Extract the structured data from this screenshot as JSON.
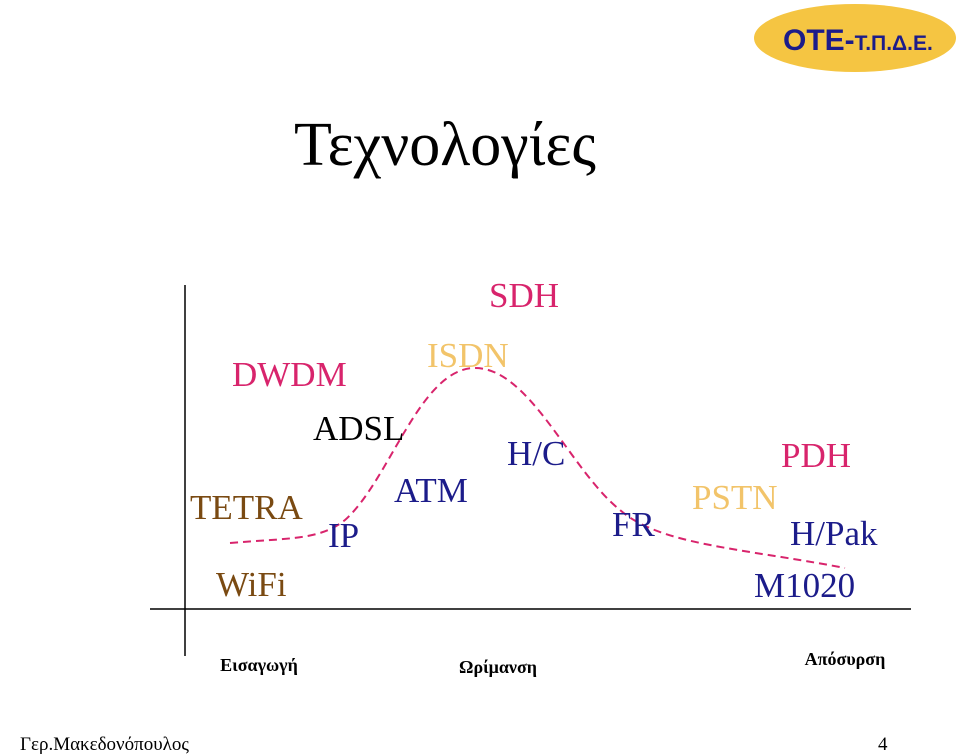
{
  "badge": {
    "main": "OTE-",
    "sub": "Τ.Π.Δ.Ε."
  },
  "title": "Τεχνολογίες",
  "nodes": [
    {
      "label": "SDH",
      "color": "#d8246c"
    },
    {
      "label": "DWDM",
      "color": "#d8246c"
    },
    {
      "label": "ISDN",
      "color": "#f2c46a"
    },
    {
      "label": "ADSL",
      "color": "#000000"
    },
    {
      "label": "H/C",
      "color": "#1c1c8a"
    },
    {
      "label": "PDH",
      "color": "#d8246c"
    },
    {
      "label": "ATM",
      "color": "#1c1c8a"
    },
    {
      "label": "PSTN",
      "color": "#f2c46a"
    },
    {
      "label": "TETRA",
      "color": "#7a4a12"
    },
    {
      "label": "IP",
      "color": "#1c1c8a"
    },
    {
      "label": "FR",
      "color": "#1c1c8a"
    },
    {
      "label": "H/Pak",
      "color": "#1c1c8a"
    },
    {
      "label": "WiFi",
      "color": "#7a4a12"
    },
    {
      "label": "M1020",
      "color": "#1c1c8a"
    }
  ],
  "phases": [
    "Εισαγωγή",
    "Ωρίμανση",
    "Απόσυρση"
  ],
  "footer": {
    "author": "Γερ.Μακεδονόπουλος",
    "page": "4"
  }
}
